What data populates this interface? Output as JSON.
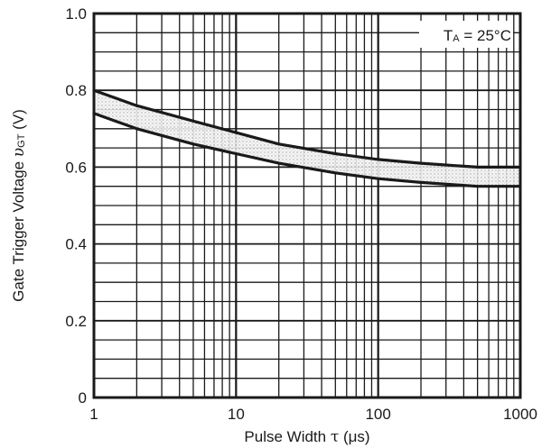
{
  "chart_data": {
    "type": "area",
    "title": "",
    "xlabel": "Pulse Width τ (μs)",
    "ylabel": "Gate Trigger Voltage υGT (V)",
    "ylabel_main": "Gate Trigger Voltage ",
    "ylabel_sym": "υ",
    "ylabel_sub": "GT",
    "ylabel_unit": " (V)",
    "xlabel_main": "Pulse Width ",
    "xlabel_sym": "τ",
    "xlabel_unit": " (μs)",
    "x_scale": "log",
    "xlim": [
      1,
      1000
    ],
    "ylim": [
      0,
      1.0
    ],
    "grid": true,
    "x_ticks": [
      1,
      10,
      100,
      1000
    ],
    "x_tick_labels": [
      "1",
      "10",
      "100",
      "1000"
    ],
    "y_ticks": [
      0,
      0.2,
      0.4,
      0.6,
      0.8,
      1.0
    ],
    "y_tick_labels": [
      "0",
      "0.2",
      "0.4",
      "0.6",
      "0.8",
      "1.0"
    ],
    "annotation": {
      "text_main": "T",
      "text_sub": "A",
      "text_rest": " = 25°C",
      "full": "TA = 25°C"
    },
    "series": [
      {
        "role": "upper",
        "x": [
          1,
          2,
          5,
          10,
          20,
          50,
          100,
          200,
          500,
          1000
        ],
        "y": [
          0.8,
          0.76,
          0.72,
          0.69,
          0.66,
          0.635,
          0.62,
          0.61,
          0.6,
          0.6
        ]
      },
      {
        "role": "lower",
        "x": [
          1,
          2,
          5,
          10,
          20,
          50,
          100,
          200,
          500,
          1000
        ],
        "y": [
          0.74,
          0.7,
          0.66,
          0.635,
          0.61,
          0.585,
          0.57,
          0.56,
          0.55,
          0.55
        ]
      }
    ],
    "colors": {
      "line": "#1a1a1a",
      "band": "#bdbdbd",
      "grid": "#1a1a1a",
      "frame": "#1a1a1a"
    }
  }
}
